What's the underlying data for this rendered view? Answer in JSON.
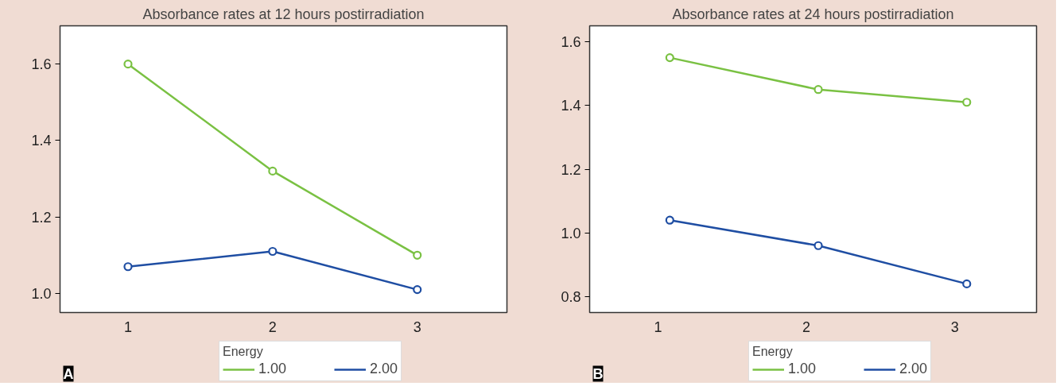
{
  "chart_data": [
    {
      "type": "line",
      "title": "Absorbance rates at 12 hours postirradiation",
      "x": [
        1,
        2,
        3
      ],
      "xlim": [
        0.53,
        3.62
      ],
      "xticks": [
        1,
        2,
        3
      ],
      "ylim": [
        0.95,
        1.7
      ],
      "yticks": [
        {
          "value": 1,
          "label": "1.0"
        },
        1.2,
        1.4,
        1.6
      ],
      "legend_title": "Energy",
      "legend": "bottom",
      "grid": false,
      "marker": "circle",
      "line_style": "solid",
      "annotations": [
        "A"
      ],
      "series": [
        {
          "name": "1.00",
          "color": "#7ac143",
          "values": [
            1.6,
            1.32,
            1.1
          ]
        },
        {
          "name": "2.00",
          "color": "#1f4ea3",
          "values": [
            1.07,
            1.11,
            1.01
          ]
        }
      ]
    },
    {
      "type": "line",
      "title": "Absorbance rates at 24 hours postirradiation",
      "x": [
        1.08,
        2.08,
        3.08
      ],
      "xlim": [
        0.54,
        3.55
      ],
      "xticks": [
        1,
        2,
        3
      ],
      "ylim": [
        0.75,
        1.65
      ],
      "yticks": [
        0.8,
        {
          "value": 1,
          "label": "1.0"
        },
        1.2,
        1.4,
        1.6
      ],
      "legend_title": "Energy",
      "legend": "bottom",
      "grid": false,
      "marker": "circle",
      "line_style": "solid",
      "annotations": [
        "B"
      ],
      "series": [
        {
          "name": "1.00",
          "color": "#7ac143",
          "values": [
            1.55,
            1.45,
            1.41
          ]
        },
        {
          "name": "2.00",
          "color": "#1f4ea3",
          "values": [
            1.04,
            0.96,
            0.84
          ]
        }
      ]
    }
  ]
}
